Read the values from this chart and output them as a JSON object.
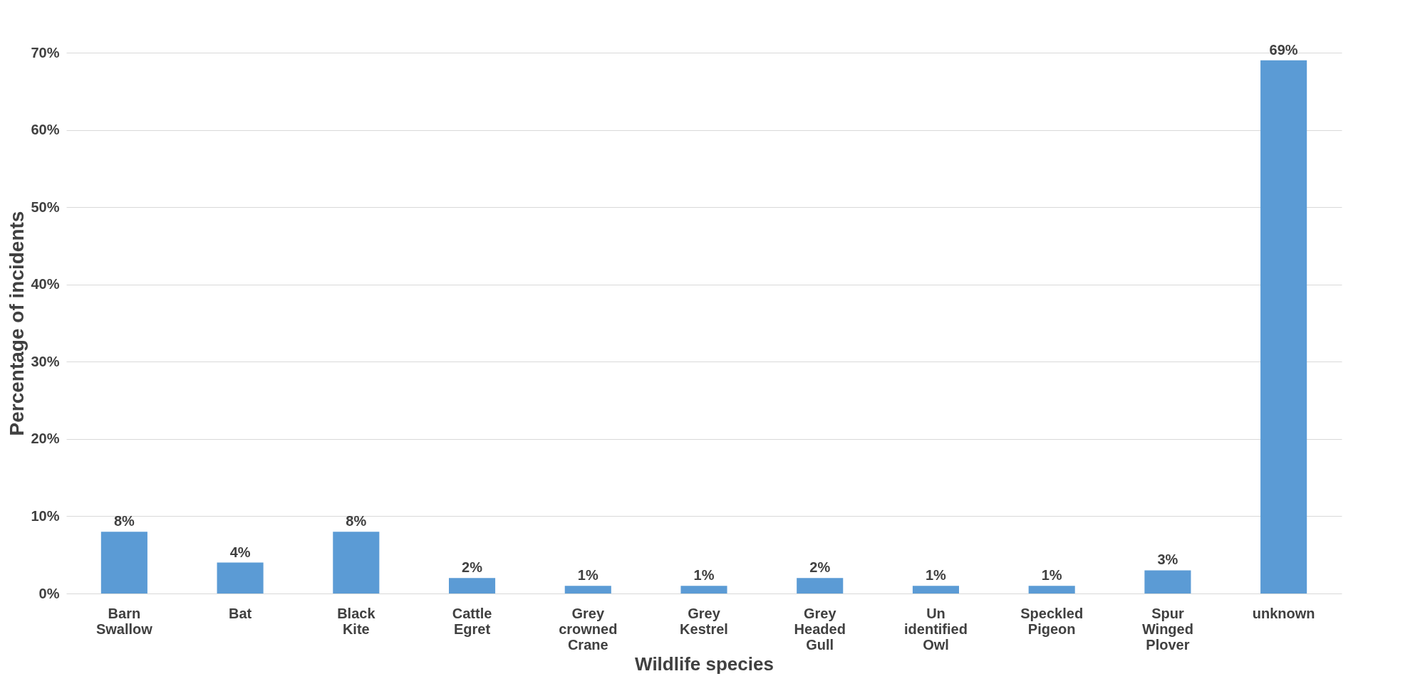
{
  "chart_data": {
    "type": "bar",
    "xlabel": "Wildlife species",
    "ylabel": "Percentage of incidents",
    "categories": [
      "Barn Swallow",
      "Bat",
      "Black Kite",
      "Cattle Egret",
      "Grey crowned Crane",
      "Grey Kestrel",
      "Grey Headed Gull",
      "Un identified Owl",
      "Speckled Pigeon",
      "Spur Winged Plover",
      "unknown"
    ],
    "values": [
      8,
      4,
      8,
      2,
      1,
      1,
      2,
      1,
      1,
      3,
      69
    ],
    "value_labels": [
      "8%",
      "4%",
      "8%",
      "2%",
      "1%",
      "1%",
      "2%",
      "1%",
      "1%",
      "3%",
      "69%"
    ],
    "color": "#5b9bd5",
    "ylim": [
      0,
      70
    ],
    "yticks": [
      {
        "value": 0,
        "label": "0%"
      },
      {
        "value": 10,
        "label": "10%"
      },
      {
        "value": 20,
        "label": "20%"
      },
      {
        "value": 30,
        "label": "30%"
      },
      {
        "value": 40,
        "label": "40%"
      },
      {
        "value": 50,
        "label": "50%"
      },
      {
        "value": 60,
        "label": "60%"
      },
      {
        "value": 70,
        "label": "70%"
      }
    ],
    "grid": "y"
  }
}
